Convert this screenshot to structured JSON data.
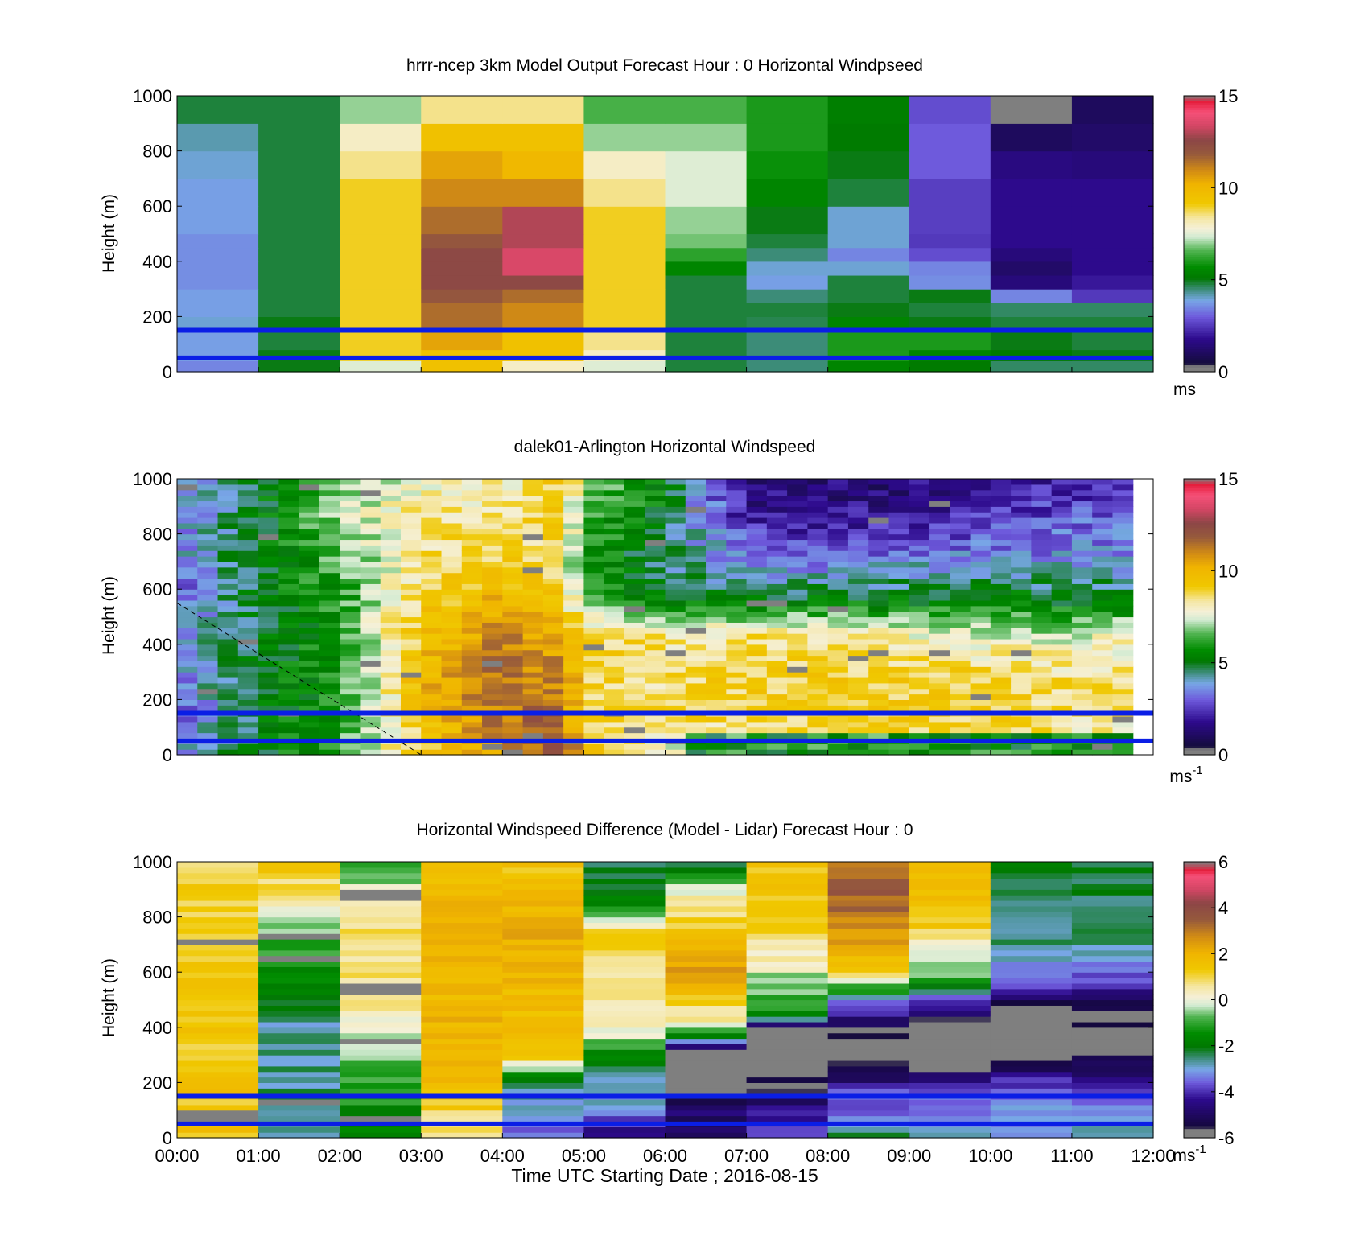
{
  "figure": {
    "xlabel": "Time UTC  Starting Date ; 2016-08-15",
    "x_ticks": [
      "00:00",
      "01:00",
      "02:00",
      "03:00",
      "04:00",
      "05:00",
      "06:00",
      "07:00",
      "08:00",
      "09:00",
      "10:00",
      "11:00",
      "12:00"
    ],
    "reference_lines_height_m": [
      150,
      50
    ],
    "reference_line_color": "#0a1ee6"
  },
  "chart_data": [
    {
      "type": "heatmap",
      "title": "hrrr-ncep 3km Model Output   Forecast Hour : 0 Horizontal Windpseed",
      "ylabel": "Height (m)",
      "xlim_hours": [
        0,
        12
      ],
      "ylim": [
        0,
        1000
      ],
      "y_ticks": [
        "0",
        "200",
        "400",
        "600",
        "800",
        "1000"
      ],
      "colorbar": {
        "range": [
          0,
          15
        ],
        "ticks": [
          "0",
          "5",
          "10",
          "15"
        ],
        "unit": "ms",
        "unit_superscript": ""
      },
      "column_time_hours": [
        0,
        1,
        2,
        3,
        4,
        5,
        6,
        7,
        8,
        9,
        10,
        11
      ],
      "row_top_heights_m": [
        40,
        80,
        150,
        200,
        250,
        300,
        350,
        400,
        450,
        500,
        600,
        700,
        800,
        900,
        1000
      ],
      "values": [
        [
          3.5,
          5.0,
          7.5,
          9.5,
          8.0,
          7.5,
          4.8,
          4.5,
          5.5,
          5.2,
          4.6,
          4.6
        ],
        [
          3.8,
          5.0,
          9.0,
          9.5,
          9.5,
          8.0,
          4.8,
          4.5,
          6.0,
          5.5,
          5.2,
          5.0
        ],
        [
          3.8,
          4.8,
          9.0,
          10.5,
          9.5,
          8.5,
          4.8,
          4.5,
          6.0,
          6.0,
          5.0,
          4.8
        ],
        [
          4.0,
          5.0,
          9.0,
          11.5,
          11.0,
          9.0,
          4.8,
          4.7,
          5.5,
          5.0,
          4.8,
          4.8
        ],
        [
          3.8,
          4.8,
          9.0,
          11.5,
          11.0,
          9.0,
          4.8,
          4.8,
          5.0,
          4.8,
          4.6,
          4.6
        ],
        [
          3.8,
          4.8,
          9.0,
          12.0,
          11.5,
          9.0,
          4.8,
          4.5,
          4.8,
          5.0,
          3.5,
          2.5
        ],
        [
          3.6,
          4.8,
          9.0,
          12.5,
          12.5,
          9.0,
          4.8,
          3.8,
          4.8,
          3.6,
          1.5,
          2.0
        ],
        [
          3.6,
          4.8,
          9.0,
          12.5,
          13.5,
          9.0,
          5.5,
          4.0,
          4.0,
          3.5,
          1.2,
          1.8
        ],
        [
          3.6,
          4.8,
          9.0,
          12.5,
          13.5,
          9.0,
          6.2,
          4.5,
          3.5,
          2.8,
          1.5,
          1.8
        ],
        [
          3.6,
          4.8,
          9.0,
          12.0,
          13.0,
          9.0,
          6.8,
          4.8,
          4.0,
          2.5,
          1.8,
          1.8
        ],
        [
          3.8,
          4.8,
          9.0,
          11.5,
          13.0,
          9.0,
          7.0,
          5.0,
          4.0,
          2.6,
          1.8,
          1.8
        ],
        [
          3.8,
          4.8,
          9.0,
          11.0,
          11.0,
          8.5,
          7.5,
          5.5,
          4.8,
          2.6,
          1.8,
          1.8
        ],
        [
          4.0,
          4.8,
          8.5,
          10.5,
          10.0,
          8.0,
          7.5,
          5.8,
          5.0,
          3.0,
          1.6,
          1.5
        ],
        [
          4.2,
          4.8,
          8.0,
          9.5,
          9.5,
          7.0,
          7.0,
          6.0,
          5.2,
          3.0,
          1.0,
          1.2
        ],
        [
          4.8,
          4.8,
          7.0,
          8.5,
          8.5,
          6.5,
          6.5,
          6.0,
          5.3,
          2.8,
          15.0,
          1.0
        ]
      ]
    },
    {
      "type": "heatmap",
      "title": "dalek01-Arlington  Horizontal Windspeed",
      "ylabel": "Height (m)",
      "xlim_hours": [
        0,
        12
      ],
      "ylim": [
        0,
        1000
      ],
      "y_ticks": [
        "0",
        "200",
        "400",
        "600",
        "800",
        "1000"
      ],
      "colorbar": {
        "range": [
          0,
          15
        ],
        "ticks": [
          "0",
          "5",
          "10",
          "15"
        ],
        "unit": "ms",
        "unit_superscript": "-1"
      },
      "columns": 47,
      "column_width_hours": 0.25,
      "rows": 50,
      "row_height_m": 20,
      "extra_lines": [
        {
          "style": "dashed",
          "from": {
            "t_hours": 0,
            "height_m": 550
          },
          "to": {
            "t_hours": 3,
            "height_m": 0
          }
        }
      ]
    },
    {
      "type": "heatmap",
      "title": "Horizontal Windspeed Difference (Model - Lidar) Forecast Hour : 0",
      "ylabel": "Height (m)",
      "xlim_hours": [
        0,
        12
      ],
      "ylim": [
        0,
        1000
      ],
      "y_ticks": [
        "0",
        "200",
        "400",
        "600",
        "800",
        "1000"
      ],
      "colorbar": {
        "range": [
          -6,
          6
        ],
        "ticks": [
          "-6",
          "-4",
          "-2",
          "0",
          "2",
          "4",
          "6"
        ],
        "unit": "ms",
        "unit_superscript": "-1"
      },
      "column_time_hours": [
        0,
        1,
        2,
        3,
        4,
        5,
        6,
        7,
        8,
        9,
        10,
        11
      ],
      "rows": 50,
      "row_height_m": 20
    }
  ],
  "colormaps": {
    "speed": [
      [
        0.0,
        "#7f7f7f"
      ],
      [
        0.02,
        "#7f7f7f"
      ],
      [
        0.03,
        "#140c3c"
      ],
      [
        0.12,
        "#2d0a8c"
      ],
      [
        0.2,
        "#6e5adc"
      ],
      [
        0.26,
        "#78a8e6"
      ],
      [
        0.3,
        "#3c8c78"
      ],
      [
        0.34,
        "#007800"
      ],
      [
        0.38,
        "#008c00"
      ],
      [
        0.44,
        "#50b450"
      ],
      [
        0.49,
        "#d2ebd2"
      ],
      [
        0.52,
        "#f5f0d7"
      ],
      [
        0.56,
        "#f5e6a0"
      ],
      [
        0.61,
        "#f0c800"
      ],
      [
        0.68,
        "#f0b400"
      ],
      [
        0.73,
        "#d28c14"
      ],
      [
        0.79,
        "#965a3c"
      ],
      [
        0.84,
        "#8c4646"
      ],
      [
        0.89,
        "#d24664"
      ],
      [
        0.94,
        "#f55078"
      ],
      [
        0.98,
        "#e61e3c"
      ],
      [
        1.0,
        "#7f7f7f"
      ]
    ],
    "difference": [
      [
        0.0,
        "#7f7f7f"
      ],
      [
        0.03,
        "#7f7f7f"
      ],
      [
        0.04,
        "#14083c"
      ],
      [
        0.14,
        "#2d0a8c"
      ],
      [
        0.2,
        "#6e5adc"
      ],
      [
        0.25,
        "#78a8e6"
      ],
      [
        0.29,
        "#3c8c78"
      ],
      [
        0.33,
        "#007800"
      ],
      [
        0.38,
        "#008c00"
      ],
      [
        0.44,
        "#50b450"
      ],
      [
        0.48,
        "#d2ebd2"
      ],
      [
        0.51,
        "#f5f0d7"
      ],
      [
        0.55,
        "#f5e6a0"
      ],
      [
        0.61,
        "#f0c800"
      ],
      [
        0.67,
        "#f0b400"
      ],
      [
        0.73,
        "#d28c14"
      ],
      [
        0.79,
        "#965a3c"
      ],
      [
        0.85,
        "#8c4646"
      ],
      [
        0.9,
        "#d24664"
      ],
      [
        0.95,
        "#f55078"
      ],
      [
        0.97,
        "#e61e3c"
      ],
      [
        1.0,
        "#7f7f7f"
      ]
    ]
  }
}
